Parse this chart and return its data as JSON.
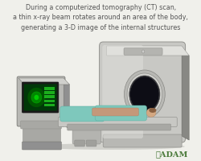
{
  "bg_color": "#f0f0eb",
  "title_lines": [
    "During a computerized tomography (CT) scan,",
    "a thin x-ray beam rotates around an area of the body,",
    "generating a 3-D image of the internal structures"
  ],
  "title_fontsize": 5.8,
  "title_color": "#555555",
  "adam_text": "✱ADAM",
  "adam_color": "#4a7a3a",
  "adam_fontsize": 7.0,
  "fig_width": 2.51,
  "fig_height": 2.01,
  "dpi": 100
}
